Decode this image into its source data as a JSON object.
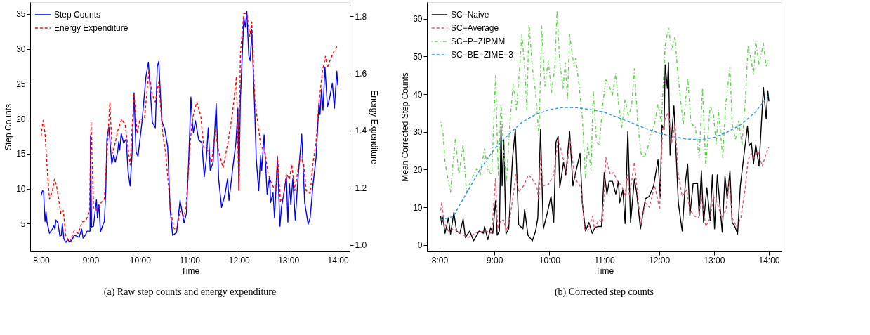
{
  "chart_data": [
    {
      "type": "line",
      "title": "(a) Raw step counts and energy expenditure",
      "xlabel": "Time",
      "ylabel": "Step Counts",
      "y2label": "Energy Expenditure",
      "xlim": [
        7.78,
        14.24
      ],
      "xticks": [
        {
          "value": 8,
          "label": "8:00"
        },
        {
          "value": 9,
          "label": "9:00"
        },
        {
          "value": 10,
          "label": "10:00"
        },
        {
          "value": 11,
          "label": "11:00"
        },
        {
          "value": 12,
          "label": "12:00"
        },
        {
          "value": 13,
          "label": "13:00"
        },
        {
          "value": 14,
          "label": "14:00"
        }
      ],
      "ylim": [
        1.0,
        36.7
      ],
      "yticks": [
        5,
        10,
        15,
        20,
        25,
        30,
        35
      ],
      "y2lim": [
        0.977,
        1.85
      ],
      "y2ticks": [
        {
          "value": 1,
          "label": "1.0"
        },
        1.2,
        1.4,
        1.6,
        1.8
      ],
      "grid": false,
      "legend": "top left",
      "series": [
        {
          "name": "Step Counts",
          "color": "#0000ff",
          "line_style": "solid",
          "x": [
            8.0,
            8.03,
            8.05,
            8.08,
            8.1,
            8.12,
            8.17,
            8.22,
            8.26,
            8.28,
            8.3,
            8.34,
            8.38,
            8.41,
            8.43,
            8.46,
            8.5,
            8.54,
            8.58,
            8.62,
            8.67,
            8.72,
            8.77,
            8.82,
            8.85,
            8.9,
            8.93,
            8.99,
            9.0,
            9.02,
            9.06,
            9.12,
            9.14,
            9.17,
            9.2,
            9.26,
            9.28,
            9.31,
            9.33,
            9.37,
            9.43,
            9.47,
            9.5,
            9.55,
            9.57,
            9.59,
            9.62,
            9.67,
            9.72,
            9.76,
            9.8,
            9.84,
            9.88,
            9.92,
            9.96,
            10.04,
            10.12,
            10.17,
            10.21,
            10.25,
            10.31,
            10.35,
            10.38,
            10.44,
            10.5,
            10.56,
            10.61,
            10.66,
            10.74,
            10.81,
            10.89,
            10.94,
            10.99,
            11.03,
            11.06,
            11.08,
            11.12,
            11.19,
            11.25,
            11.3,
            11.34,
            11.38,
            11.42,
            11.48,
            11.54,
            11.59,
            11.65,
            11.72,
            11.77,
            11.8,
            11.87,
            11.94,
            11.98,
            12.0,
            12.03,
            12.1,
            12.13,
            12.16,
            12.2,
            12.23,
            12.26,
            12.32,
            12.35,
            12.4,
            12.44,
            12.46,
            12.51,
            12.57,
            12.62,
            12.64,
            12.69,
            12.72,
            12.78,
            12.83,
            12.86,
            12.92,
            12.96,
            12.99,
            13.02,
            13.05,
            13.09,
            13.14,
            13.19,
            13.27,
            13.33,
            13.4,
            13.44,
            13.5,
            13.56,
            13.62,
            13.64,
            13.67,
            13.7,
            13.74,
            13.79,
            13.83,
            13.89,
            13.93,
            13.98,
            14.0
          ],
          "values": [
            9.0,
            9.7,
            9.6,
            5.3,
            6.7,
            5.2,
            3.6,
            4.1,
            4.7,
            4.2,
            5.5,
            5.1,
            3.2,
            3.3,
            5.0,
            2.8,
            2.3,
            2.7,
            2.3,
            2.6,
            3.3,
            3.2,
            3.0,
            4.2,
            2.9,
            3.4,
            3.9,
            3.9,
            17.5,
            4.5,
            4.6,
            8.4,
            5.8,
            7.7,
            3.8,
            5.0,
            5.3,
            10,
            17,
            18.8,
            13.5,
            14.8,
            13.8,
            15.3,
            16.7,
            15.5,
            17.9,
            16.5,
            17.1,
            12.4,
            10.4,
            15,
            23.7,
            15.3,
            14.6,
            19.5,
            26,
            28.1,
            23.8,
            19.5,
            18.7,
            27.5,
            28.2,
            19.7,
            18.5,
            16,
            7,
            3.3,
            3.7,
            8.3,
            5.1,
            6.5,
            15,
            23.1,
            19.4,
            18.0,
            19.7,
            16.9,
            16.6,
            11.7,
            14.1,
            18.7,
            12.6,
            13.8,
            22.2,
            11.4,
            7.3,
            9.2,
            11.4,
            8.3,
            12.6,
            16.6,
            21.5,
            9.8,
            22.8,
            34.5,
            33.1,
            35.4,
            29.0,
            28.3,
            32.7,
            21.2,
            14.4,
            9.7,
            14.8,
            12.6,
            17.7,
            9.2,
            11.7,
            8.0,
            9.4,
            5.8,
            14.4,
            4.6,
            7.3,
            9.8,
            11.7,
            5.2,
            10.7,
            7.7,
            11.4,
            5.5,
            11.0,
            17.8,
            8.0,
            4.9,
            5.8,
            10.7,
            14.4,
            22.3,
            20.6,
            24.2,
            21.2,
            27.4,
            21.7,
            22.8,
            25.1,
            21.5,
            26.8,
            24.8
          ]
        },
        {
          "name": "Energy Expenditure",
          "color": "#ff0000",
          "line_style": "dashed",
          "axis": "y2",
          "x": [
            8.0,
            8.04,
            8.08,
            8.13,
            8.17,
            8.23,
            8.27,
            8.31,
            8.4,
            8.45,
            8.5,
            8.58,
            8.67,
            8.75,
            8.83,
            8.91,
            8.98,
            9.01,
            9.06,
            9.14,
            9.22,
            9.28,
            9.35,
            9.39,
            9.44,
            9.49,
            9.55,
            9.63,
            9.7,
            9.8,
            9.88,
            9.94,
            10.0,
            10.09,
            10.18,
            10.24,
            10.31,
            10.38,
            10.46,
            10.52,
            10.62,
            10.68,
            10.74,
            10.81,
            10.89,
            10.93,
            11.01,
            11.05,
            11.1,
            11.15,
            11.23,
            11.29,
            11.37,
            11.45,
            11.52,
            11.6,
            11.68,
            11.79,
            11.87,
            11.95,
            12.0,
            12.03,
            12.1,
            12.16,
            12.22,
            12.26,
            12.32,
            12.38,
            12.44,
            12.53,
            12.59,
            12.67,
            12.75,
            12.78,
            12.84,
            12.9,
            12.96,
            13.02,
            13.07,
            13.13,
            13.21,
            13.25,
            13.31,
            13.36,
            13.44,
            13.5,
            13.56,
            13.62,
            13.69,
            13.75,
            13.79,
            13.85,
            13.93,
            14.0
          ],
          "values": [
            1.38,
            1.435,
            1.39,
            1.25,
            1.16,
            1.19,
            1.23,
            1.21,
            1.11,
            1.12,
            1.03,
            1.01,
            1.05,
            1.04,
            1.08,
            1.085,
            1.12,
            1.43,
            1.13,
            1.12,
            1.15,
            1.16,
            1.37,
            1.5,
            1.32,
            1.35,
            1.4,
            1.44,
            1.42,
            1.28,
            1.53,
            1.39,
            1.44,
            1.44,
            1.61,
            1.53,
            1.5,
            1.57,
            1.39,
            1.32,
            1.12,
            1.06,
            1.05,
            1.12,
            1.1,
            1.13,
            1.34,
            1.43,
            1.47,
            1.5,
            1.45,
            1.34,
            1.33,
            1.29,
            1.4,
            1.32,
            1.27,
            1.37,
            1.46,
            1.59,
            1.19,
            1.67,
            1.81,
            1.81,
            1.73,
            1.78,
            1.51,
            1.43,
            1.35,
            1.32,
            1.25,
            1.21,
            1.19,
            1.31,
            1.15,
            1.17,
            1.25,
            1.23,
            1.28,
            1.19,
            1.28,
            1.31,
            1.28,
            1.19,
            1.18,
            1.29,
            1.36,
            1.5,
            1.61,
            1.66,
            1.62,
            1.65,
            1.68,
            1.7
          ]
        }
      ]
    },
    {
      "type": "line",
      "title": "(b) Corrected step counts",
      "xlabel": "Time",
      "ylabel": "Mean Corrected Step Counts",
      "xlim": [
        7.77,
        14.23
      ],
      "xticks": [
        {
          "value": 8,
          "label": "8:00"
        },
        {
          "value": 9,
          "label": "9:00"
        },
        {
          "value": 10,
          "label": "10:00"
        },
        {
          "value": 11,
          "label": "11:00"
        },
        {
          "value": 12,
          "label": "12:00"
        },
        {
          "value": 13,
          "label": "13:00"
        },
        {
          "value": 14,
          "label": "14:00"
        }
      ],
      "ylim": [
        -1.7,
        64.4
      ],
      "yticks": [
        0,
        10,
        20,
        30,
        40,
        50,
        60
      ],
      "grid": false,
      "legend": "top left",
      "series": [
        {
          "name": "SC−Naive",
          "color": "#000000",
          "line_style": "solid",
          "x": [
            8.02,
            8.04,
            8.06,
            8.1,
            8.16,
            8.2,
            8.26,
            8.31,
            8.37,
            8.43,
            8.47,
            8.55,
            8.62,
            8.72,
            8.8,
            8.82,
            8.88,
            8.93,
            8.97,
            9.02,
            9.05,
            9.09,
            9.12,
            9.14,
            9.17,
            9.21,
            9.26,
            9.33,
            9.38,
            9.44,
            9.52,
            9.55,
            9.61,
            9.69,
            9.75,
            9.79,
            9.84,
            9.89,
            9.96,
            10.03,
            10.08,
            10.12,
            10.16,
            10.19,
            10.26,
            10.3,
            10.37,
            10.43,
            10.47,
            10.56,
            10.6,
            10.66,
            10.72,
            10.78,
            10.83,
            10.88,
            10.95,
            11.0,
            11.05,
            11.09,
            11.15,
            11.21,
            11.26,
            11.28,
            11.34,
            11.38,
            11.43,
            11.48,
            11.55,
            11.59,
            11.66,
            11.75,
            11.82,
            11.9,
            11.98,
            12.02,
            12.05,
            12.09,
            12.11,
            12.15,
            12.17,
            12.2,
            12.27,
            12.35,
            12.42,
            12.48,
            12.52,
            12.56,
            12.62,
            12.7,
            12.73,
            12.77,
            12.81,
            12.87,
            12.93,
            12.97,
            13.01,
            13.06,
            13.15,
            13.2,
            13.24,
            13.29,
            13.33,
            13.38,
            13.43,
            13.48,
            13.54,
            13.61,
            13.64,
            13.68,
            13.72,
            13.76,
            13.82,
            13.9,
            13.95,
            13.98,
            14.0
          ],
          "values": [
            7.7,
            5.4,
            7.4,
            3.1,
            7.2,
            2.9,
            8.6,
            3.7,
            3.1,
            6.9,
            2.0,
            3.7,
            1.1,
            3.7,
            3.1,
            4.9,
            1.4,
            4.6,
            3.1,
            11.7,
            2.6,
            3.7,
            31.5,
            15.7,
            27.8,
            2.9,
            4.3,
            23.2,
            30.6,
            5.4,
            4.3,
            9.4,
            2.6,
            1.1,
            3.7,
            7.2,
            30.6,
            4.3,
            8.3,
            12.9,
            6.0,
            27.2,
            28.9,
            15.2,
            22.0,
            18.6,
            30.1,
            15.7,
            18.6,
            24.3,
            11.2,
            3.7,
            6.0,
            3.1,
            4.6,
            4.9,
            4.9,
            19.2,
            13.5,
            16.9,
            16.9,
            13.5,
            16.9,
            11.2,
            14.6,
            5.7,
            30.1,
            6.0,
            17.5,
            14.0,
            4.3,
            12.3,
            12.9,
            15.7,
            22.6,
            12.9,
            31.8,
            30.6,
            47.8,
            41.5,
            48.4,
            23.8,
            36.9,
            11.2,
            3.7,
            16.9,
            21.5,
            7.7,
            16.3,
            16.3,
            7.7,
            19.7,
            6.0,
            15.2,
            6.6,
            18.6,
            4.3,
            18.6,
            3.4,
            18.3,
            12.3,
            19.7,
            6.0,
            4.9,
            2.9,
            15.7,
            23.2,
            31.5,
            26.3,
            27.2,
            21.5,
            26.6,
            20.9,
            41.8,
            33.5,
            40.9,
            38.1
          ]
        },
        {
          "name": "SC−Average",
          "color": "#df536b",
          "line_style": "dashed",
          "x": [
            8.02,
            8.04,
            8.08,
            8.16,
            8.26,
            8.37,
            8.53,
            8.68,
            8.84,
            8.95,
            9.02,
            9.06,
            9.12,
            9.17,
            9.22,
            9.28,
            9.34,
            9.39,
            9.44,
            9.53,
            9.62,
            9.69,
            9.77,
            9.81,
            9.84,
            9.88,
            9.98,
            10.08,
            10.16,
            10.23,
            10.31,
            10.38,
            10.45,
            10.5,
            10.58,
            10.64,
            10.7,
            10.79,
            10.82,
            10.9,
            10.97,
            11.03,
            11.11,
            11.17,
            11.24,
            11.32,
            11.38,
            11.42,
            11.46,
            11.55,
            11.61,
            11.67,
            11.75,
            11.82,
            11.92,
            12.01,
            12.06,
            12.11,
            12.17,
            12.23,
            12.29,
            12.35,
            12.42,
            12.5,
            12.56,
            12.64,
            12.72,
            12.77,
            12.85,
            12.93,
            12.99,
            13.06,
            13.14,
            13.22,
            13.28,
            13.33,
            13.41,
            13.49,
            13.57,
            13.62,
            13.68,
            13.74,
            13.8,
            13.88,
            13.95,
            14.0
          ],
          "values": [
            9.2,
            11.2,
            6.0,
            3.7,
            4.3,
            3.1,
            2.0,
            3.4,
            3.7,
            3.1,
            17.7,
            4.3,
            6.6,
            6.6,
            3.7,
            7.2,
            12.9,
            18.6,
            14.0,
            15.7,
            18.6,
            17.5,
            15.7,
            11.7,
            24.3,
            15.7,
            16.0,
            18.6,
            28.3,
            24.3,
            19.2,
            27.8,
            19.2,
            16.9,
            15.2,
            4.3,
            3.7,
            7.7,
            4.3,
            6.6,
            6.0,
            23.2,
            18.6,
            19.2,
            16.9,
            15.7,
            12.9,
            18.6,
            12.9,
            22.0,
            12.9,
            5.4,
            11.2,
            10.0,
            15.7,
            9.4,
            30.1,
            33.5,
            35.2,
            27.2,
            32.3,
            18.6,
            12.9,
            14.6,
            9.4,
            7.7,
            7.2,
            12.9,
            4.9,
            7.2,
            12.9,
            11.2,
            7.2,
            9.4,
            16.9,
            7.2,
            4.9,
            7.2,
            15.2,
            22.6,
            24.3,
            23.2,
            24.9,
            20.9,
            24.3,
            26.0
          ]
        },
        {
          "name": "SC−P−ZIPMM",
          "color": "#61d04f",
          "line_style": "dotted",
          "x": [
            8.02,
            8.06,
            8.1,
            8.14,
            8.2,
            8.24,
            8.29,
            8.35,
            8.43,
            8.49,
            8.55,
            8.62,
            8.68,
            8.74,
            8.82,
            8.88,
            8.95,
            9.02,
            9.07,
            9.12,
            9.17,
            9.22,
            9.28,
            9.34,
            9.4,
            9.46,
            9.5,
            9.55,
            9.59,
            9.63,
            9.69,
            9.75,
            9.81,
            9.86,
            9.92,
            9.98,
            10.04,
            10.1,
            10.14,
            10.19,
            10.25,
            10.29,
            10.33,
            10.37,
            10.45,
            10.48,
            10.54,
            10.6,
            10.66,
            10.7,
            10.76,
            10.8,
            10.86,
            10.91,
            10.97,
            11.03,
            11.09,
            11.15,
            11.21,
            11.26,
            11.32,
            11.38,
            11.44,
            11.5,
            11.55,
            11.61,
            11.67,
            11.73,
            11.79,
            11.84,
            11.92,
            11.98,
            12.04,
            12.11,
            12.17,
            12.23,
            12.29,
            12.33,
            12.39,
            12.44,
            12.52,
            12.58,
            12.66,
            12.73,
            12.79,
            12.85,
            12.93,
            12.99,
            13.04,
            13.08,
            13.16,
            13.21,
            13.29,
            13.33,
            13.39,
            13.45,
            13.51,
            13.57,
            13.62,
            13.68,
            13.72,
            13.76,
            13.82,
            13.9,
            13.95,
            14.0
          ],
          "values": [
            32.6,
            30.1,
            22.0,
            18.6,
            14.0,
            20.9,
            28.3,
            18.6,
            26.6,
            14.0,
            16.3,
            18.6,
            20.3,
            18.6,
            25.5,
            19.7,
            18.6,
            44.9,
            18.6,
            37.5,
            24.3,
            16.9,
            32.3,
            42.6,
            35.8,
            47.2,
            55.8,
            47.2,
            35.8,
            58.7,
            47.2,
            40.4,
            28.9,
            58.1,
            42.1,
            48.9,
            40.4,
            47.2,
            62.1,
            48.4,
            41.5,
            48.4,
            38.6,
            55.8,
            47.2,
            49.5,
            42.6,
            34.1,
            17.5,
            27.2,
            19.7,
            40.9,
            27.2,
            26.6,
            36.9,
            43.8,
            42.1,
            39.8,
            45.5,
            37.5,
            31.2,
            38.6,
            34.1,
            36.9,
            46.7,
            32.3,
            24.3,
            23.2,
            25.5,
            28.9,
            32.3,
            37.5,
            32.3,
            52.9,
            57.5,
            51.8,
            55.2,
            47.2,
            38.6,
            31.8,
            44.4,
            32.3,
            31.2,
            23.2,
            41.5,
            20.9,
            36.9,
            34.6,
            26.6,
            35.8,
            23.2,
            36.9,
            47.2,
            32.3,
            27.8,
            32.9,
            26.6,
            38.1,
            52.9,
            48.9,
            44.9,
            54.1,
            47.8,
            53.5,
            47.2,
            49.5
          ]
        },
        {
          "name": "SC−BE−ZIME−3",
          "color": "#2297e6",
          "line_style": "dashed",
          "x": [
            8.02,
            8.25,
            8.5,
            8.75,
            9.0,
            9.25,
            9.5,
            9.75,
            10.0,
            10.25,
            10.5,
            10.75,
            11.0,
            11.25,
            11.5,
            11.75,
            12.0,
            12.25,
            12.5,
            12.75,
            13.0,
            13.25,
            13.5,
            13.75,
            14.0
          ],
          "values": [
            6.6,
            7.6,
            14.0,
            20.3,
            25.5,
            29.2,
            32.5,
            34.6,
            35.9,
            36.5,
            36.4,
            35.9,
            35.2,
            33.8,
            32.4,
            30.9,
            29.7,
            28.7,
            28.1,
            27.9,
            28.5,
            30.0,
            32.0,
            35.2,
            39.8
          ]
        }
      ]
    }
  ]
}
